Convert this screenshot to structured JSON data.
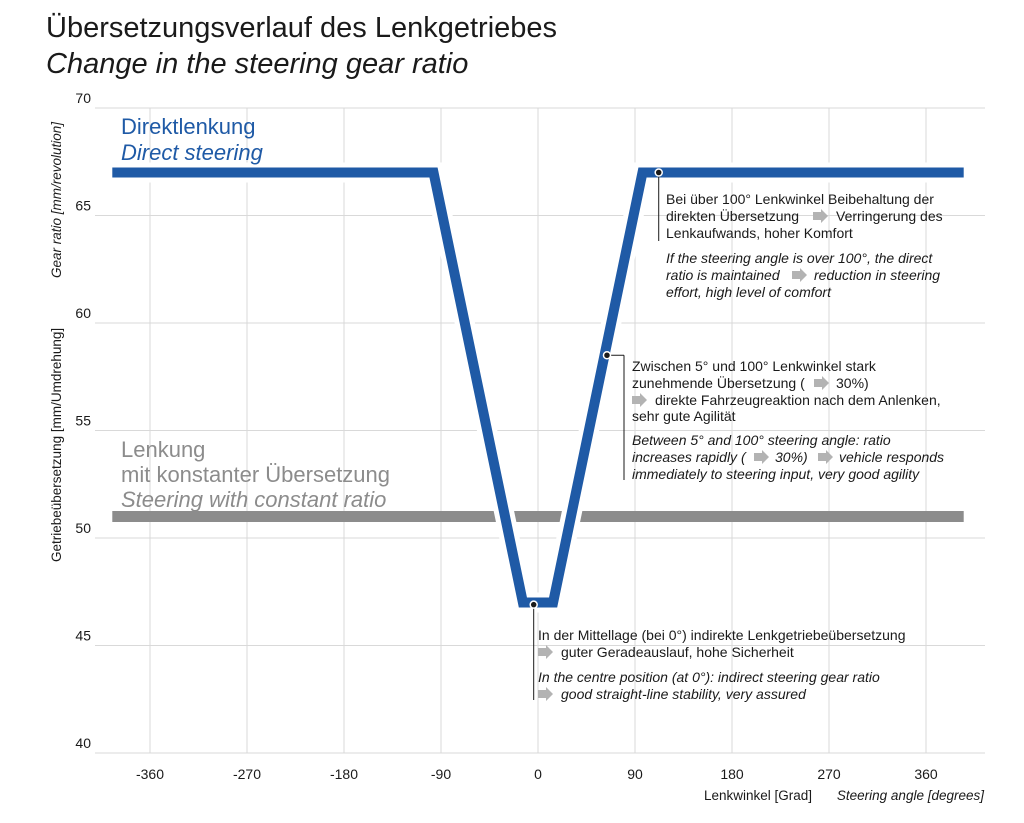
{
  "title": {
    "de": "Übersetzungsverlauf des Lenkgetriebes",
    "en": "Change in the steering gear ratio"
  },
  "colors": {
    "direct": "#1f5aa6",
    "constant": "#8c8c8c",
    "grid": "#d9d9d9",
    "arrow": "#b3b3b3"
  },
  "chart_data": {
    "type": "line",
    "xlabel": "Lenkwinkel [Grad]",
    "xlabel_en": "Steering angle [degrees]",
    "ylabel": "Getriebeübersetzung [mm/Umdrehung]",
    "ylabel_en": "Gear ratio [mm/revolution]",
    "xlim": [
      -410,
      410
    ],
    "ylim": [
      40,
      70
    ],
    "xticks": [
      "-360",
      "-270",
      "-180",
      "-90",
      "0",
      "90",
      "180",
      "270",
      "360"
    ],
    "xtick_values": [
      -360,
      -270,
      -180,
      -90,
      0,
      90,
      180,
      270,
      360
    ],
    "yticks": [
      "40",
      "45",
      "50",
      "55",
      "60",
      "65",
      "70"
    ],
    "ytick_values": [
      40,
      45,
      50,
      55,
      60,
      65,
      70
    ],
    "grid": true,
    "series": [
      {
        "name": "Direktlenkung",
        "name_en": "Direct steering",
        "x": [
          -395,
          -97,
          -14,
          14,
          97,
          395
        ],
        "y": [
          67,
          67,
          47,
          47,
          67,
          67
        ]
      },
      {
        "name": "Lenkung mit konstanter Übersetzung",
        "name_line1": "Lenkung",
        "name_line2": "mit konstanter Übersetzung",
        "name_en": "Steering with constant ratio",
        "x": [
          -395,
          395
        ],
        "y": [
          51,
          51
        ]
      }
    ],
    "annotations": [
      {
        "point": [
          112,
          67
        ],
        "de": [
          "Bei über 100° Lenkwinkel Beibehaltung der",
          "direkten Übersetzung",
          "Verringerung des",
          "Lenkaufwands, hoher Komfort"
        ],
        "en": [
          "If the steering angle is over 100°, the direct",
          "ratio is maintained",
          "reduction in steering",
          "effort, high level of comfort"
        ]
      },
      {
        "point": [
          64,
          58.5
        ],
        "de": [
          "Zwischen 5° und 100° Lenkwinkel stark",
          "zunehmende Übersetzung (",
          "30%)",
          "direkte Fahrzeugreaktion nach dem Anlenken,",
          "sehr gute Agilität"
        ],
        "en": [
          "Between 5° and 100° steering angle: ratio",
          "increases rapidly (",
          "30%)",
          "vehicle responds",
          "immediately to steering input, very good agility"
        ]
      },
      {
        "point": [
          -4,
          46.9
        ],
        "de": [
          "In der Mittellage (bei 0°) indirekte Lenkgetriebeübersetzung",
          "guter Geradeauslauf, hohe Sicherheit"
        ],
        "en": [
          "In the centre position (at 0°): indirect steering gear ratio",
          "good straight-line stability, very assured"
        ]
      }
    ]
  }
}
